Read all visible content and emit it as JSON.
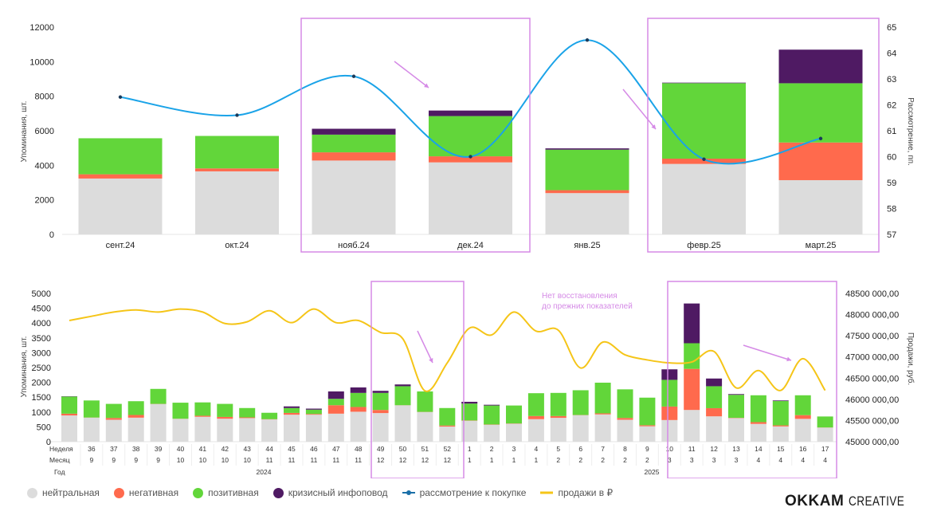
{
  "colors": {
    "neutral": "#dcdcdc",
    "negative": "#ff6a4d",
    "positive": "#62d63a",
    "crisis": "#4f1a63",
    "consideration": "#1aa3e8",
    "sales": "#f5c518",
    "highlight": "#d58ae6"
  },
  "legend": {
    "neutral": "нейтральная",
    "negative": "негативная",
    "positive": "позитивная",
    "crisis": "кризисный инфоповод",
    "consideration": "рассмотрение к покупке",
    "sales": "продажи в ₽"
  },
  "logo": {
    "bold": "OKKAM",
    "light": "CREATIVE"
  },
  "annotation": {
    "line1": "Нет восстановления",
    "line2": "до прежних показателей"
  },
  "chart_data": [
    {
      "type": "bar",
      "stacked": true,
      "categories": [
        "сент.24",
        "окт.24",
        "нояб.24",
        "дек.24",
        "янв.25",
        "февр.25",
        "март.25"
      ],
      "ylabel": "Упоминания, шт.",
      "ylim": [
        0,
        12000
      ],
      "yticks": [
        0,
        2000,
        4000,
        6000,
        8000,
        10000,
        12000
      ],
      "y2label": "Рассмотрение, пп.",
      "y2lim": [
        57,
        65
      ],
      "y2ticks": [
        57,
        58,
        59,
        60,
        61,
        62,
        63,
        64,
        65
      ],
      "series": [
        {
          "name": "нейтральная",
          "key": "neutral",
          "values": [
            3235,
            3650,
            4275,
            4170,
            2390,
            4080,
            3140
          ]
        },
        {
          "name": "негативная",
          "key": "negative",
          "values": [
            245,
            170,
            475,
            350,
            170,
            305,
            2180
          ]
        },
        {
          "name": "позитивная",
          "key": "positive",
          "values": [
            2085,
            1880,
            1025,
            2330,
            2345,
            4370,
            3430
          ]
        },
        {
          "name": "кризисный инфоповод",
          "key": "crisis",
          "values": [
            0,
            0,
            340,
            320,
            75,
            30,
            1945
          ]
        },
        {
          "name": "рассмотрение к покупке",
          "key": "consideration",
          "type": "line",
          "axis": "right",
          "values": [
            62.3,
            61.6,
            63.1,
            60.0,
            64.5,
            59.9,
            60.7
          ]
        }
      ],
      "highlighted": [
        "нояб.24",
        "дек.24",
        "февр.25",
        "март.25"
      ]
    },
    {
      "type": "bar",
      "stacked": true,
      "table_rows": {
        "week_label": "Неделя",
        "month_label": "Месяц",
        "year_label": "Год"
      },
      "weeks": [
        "",
        36,
        37,
        38,
        39,
        40,
        41,
        42,
        43,
        44,
        45,
        46,
        47,
        48,
        49,
        50,
        51,
        52,
        1,
        2,
        3,
        4,
        5,
        6,
        7,
        8,
        9,
        10,
        11,
        12,
        13,
        14,
        15,
        16,
        17
      ],
      "months": [
        "",
        9,
        9,
        9,
        9,
        10,
        10,
        10,
        10,
        11,
        11,
        11,
        11,
        11,
        12,
        12,
        12,
        12,
        1,
        1,
        1,
        1,
        2,
        2,
        2,
        2,
        2,
        3,
        3,
        3,
        3,
        4,
        4,
        4,
        4
      ],
      "years": [
        "2024",
        "2025"
      ],
      "ylabel": "Упоминания, шт.",
      "ylim": [
        0,
        5000
      ],
      "yticks": [
        0,
        500,
        1000,
        1500,
        2000,
        2500,
        3000,
        3500,
        4000,
        4500,
        5000
      ],
      "y2label": "Продажи, руб.",
      "y2lim": [
        45000000,
        48500000
      ],
      "y2ticks": [
        "45000 000,00",
        "45500 000,00",
        "46000 000,00",
        "46500 000,00",
        "47000 000,00",
        "47500 000,00",
        "48000 000,00",
        "48500 000,00"
      ],
      "series": [
        {
          "name": "нейтральная",
          "key": "neutral",
          "values": [
            885,
            810,
            740,
            810,
            1270,
            770,
            840,
            775,
            795,
            750,
            910,
            910,
            945,
            1010,
            965,
            1225,
            1000,
            510,
            705,
            570,
            605,
            760,
            805,
            895,
            920,
            740,
            520,
            730,
            1070,
            855,
            795,
            600,
            515,
            770,
            475
          ]
        },
        {
          "name": "негативная",
          "key": "negative",
          "values": [
            60,
            5,
            60,
            90,
            5,
            5,
            35,
            60,
            25,
            10,
            60,
            25,
            285,
            160,
            105,
            5,
            5,
            35,
            10,
            10,
            10,
            105,
            60,
            5,
            35,
            60,
            35,
            455,
            1385,
            275,
            10,
            60,
            35,
            125,
            5
          ]
        },
        {
          "name": "позитивная",
          "key": "positive",
          "values": [
            575,
            575,
            475,
            465,
            505,
            540,
            450,
            440,
            315,
            215,
            165,
            145,
            215,
            475,
            575,
            640,
            690,
            590,
            570,
            640,
            605,
            770,
            780,
            835,
            1035,
            965,
            930,
            900,
            865,
            740,
            775,
            905,
            820,
            670,
            370
          ]
        },
        {
          "name": "кризисный инфоповод",
          "key": "crisis",
          "values": [
            10,
            0,
            0,
            0,
            0,
            0,
            0,
            0,
            0,
            0,
            55,
            35,
            250,
            185,
            70,
            60,
            0,
            0,
            60,
            25,
            0,
            0,
            0,
            0,
            0,
            0,
            0,
            355,
            1340,
            260,
            25,
            0,
            20,
            0,
            0
          ]
        },
        {
          "name": "продажи в ₽",
          "key": "sales",
          "type": "line",
          "axis": "right",
          "values": [
            47860000,
            47960000,
            48060000,
            48110000,
            48060000,
            48130000,
            48060000,
            47790000,
            47830000,
            48090000,
            47810000,
            48130000,
            47810000,
            47860000,
            47580000,
            47430000,
            46200000,
            46860000,
            47680000,
            47520000,
            48060000,
            47610000,
            47630000,
            46740000,
            47350000,
            47050000,
            46930000,
            46860000,
            46880000,
            47130000,
            46270000,
            46680000,
            46210000,
            46960000,
            46210000
          ]
        }
      ],
      "highlighted_weeks": [
        "49-52 (2024)",
        "11-17 (2025)"
      ]
    }
  ]
}
